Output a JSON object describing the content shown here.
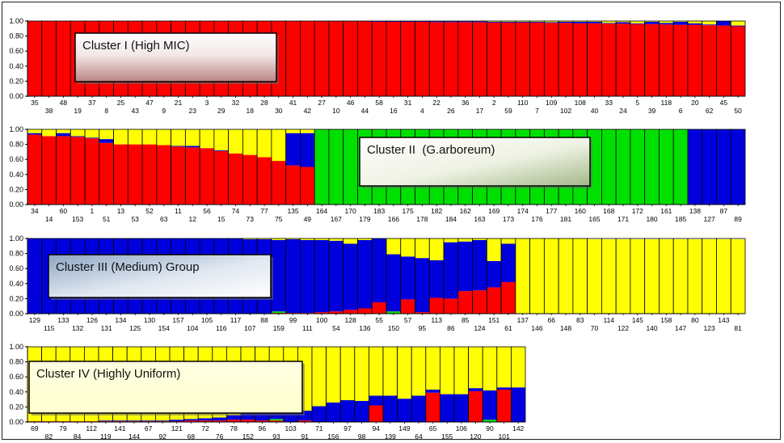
{
  "colors": {
    "red": "#ff0000",
    "green": "#00e000",
    "blue": "#0000dd",
    "yellow": "#ffff00"
  },
  "y_ticks": [
    "0.00",
    "0.20",
    "0.40",
    "0.60",
    "0.80",
    "1.00"
  ],
  "chart_data": [
    {
      "type": "bar",
      "stacked": true,
      "label": "Cluster I (High MIC)",
      "categories": [
        "35",
        "38",
        "48",
        "19",
        "37",
        "8",
        "25",
        "43",
        "47",
        "9",
        "21",
        "23",
        "3",
        "29",
        "32",
        "18",
        "28",
        "30",
        "41",
        "42",
        "27",
        "10",
        "46",
        "44",
        "58",
        "16",
        "31",
        "4",
        "22",
        "26",
        "36",
        "17",
        "2",
        "59",
        "110",
        "7",
        "109",
        "102",
        "108",
        "40",
        "33",
        "24",
        "5",
        "39",
        "118",
        "6",
        "20",
        "62",
        "45",
        "50"
      ],
      "series": [
        {
          "color": "red",
          "values": [
            1,
            1,
            1,
            1,
            1,
            1,
            1,
            1,
            1,
            1,
            1,
            1,
            1,
            1,
            1,
            1,
            1,
            1,
            1,
            1,
            0.995,
            0.995,
            0.995,
            0.995,
            0.99,
            0.99,
            0.99,
            0.99,
            0.985,
            0.985,
            0.985,
            0.985,
            0.98,
            0.98,
            0.98,
            0.98,
            0.975,
            0.975,
            0.97,
            0.97,
            0.965,
            0.965,
            0.96,
            0.96,
            0.955,
            0.95,
            0.95,
            0.945,
            0.94,
            0.93
          ]
        },
        {
          "color": "blue",
          "values": [
            0,
            0,
            0,
            0,
            0,
            0,
            0,
            0,
            0,
            0,
            0,
            0,
            0,
            0,
            0,
            0,
            0,
            0,
            0,
            0,
            0.005,
            0.005,
            0.005,
            0.005,
            0.01,
            0.01,
            0.01,
            0.01,
            0.01,
            0.01,
            0.01,
            0.01,
            0.01,
            0.01,
            0.01,
            0.01,
            0.01,
            0.015,
            0.02,
            0.02,
            0.01,
            0.02,
            0.01,
            0.03,
            0.02,
            0.04,
            0.02,
            0.01,
            0.06,
            0.01
          ]
        },
        {
          "color": "yellow",
          "values": [
            0,
            0,
            0,
            0,
            0,
            0,
            0,
            0,
            0,
            0,
            0,
            0,
            0,
            0,
            0,
            0,
            0,
            0,
            0,
            0,
            0,
            0,
            0,
            0,
            0,
            0,
            0,
            0,
            0.005,
            0.005,
            0.005,
            0.005,
            0.01,
            0.01,
            0.01,
            0.01,
            0.015,
            0.01,
            0.01,
            0.01,
            0.025,
            0.015,
            0.03,
            0.01,
            0.025,
            0.01,
            0.03,
            0.045,
            0,
            0.06
          ]
        }
      ]
    },
    {
      "type": "bar",
      "stacked": true,
      "label": "Cluster II  (G.arboreum)",
      "categories": [
        "34",
        "14",
        "60",
        "153",
        "1",
        "51",
        "13",
        "53",
        "52",
        "63",
        "11",
        "12",
        "56",
        "15",
        "74",
        "73",
        "77",
        "75",
        "135",
        "49",
        "164",
        "167",
        "170",
        "179",
        "183",
        "166",
        "175",
        "178",
        "182",
        "184",
        "162",
        "163",
        "169",
        "173",
        "174",
        "176",
        "177",
        "181",
        "160",
        "165",
        "168",
        "171",
        "172",
        "180",
        "161",
        "185",
        "138",
        "127",
        "87",
        "89"
      ],
      "series": [
        {
          "color": "red",
          "values": [
            0.93,
            0.91,
            0.91,
            0.9,
            0.88,
            0.82,
            0.8,
            0.8,
            0.8,
            0.79,
            0.77,
            0.76,
            0.75,
            0.71,
            0.68,
            0.66,
            0.63,
            0.58,
            0.52,
            0.5,
            0,
            0,
            0,
            0,
            0,
            0,
            0,
            0,
            0,
            0,
            0,
            0,
            0,
            0,
            0,
            0,
            0,
            0,
            0,
            0,
            0,
            0,
            0,
            0,
            0,
            0,
            0,
            0,
            0,
            0
          ]
        },
        {
          "color": "green",
          "values": [
            0,
            0,
            0,
            0,
            0,
            0,
            0,
            0,
            0,
            0,
            0,
            0,
            0,
            0,
            0,
            0,
            0,
            0,
            0,
            0,
            1,
            1,
            1,
            1,
            1,
            1,
            1,
            1,
            1,
            1,
            1,
            1,
            1,
            1,
            1,
            1,
            1,
            1,
            1,
            1,
            1,
            1,
            1,
            1,
            1,
            1,
            0,
            0,
            0,
            0
          ]
        },
        {
          "color": "blue",
          "values": [
            0.02,
            0,
            0.04,
            0.01,
            0.01,
            0.05,
            0,
            0,
            0,
            0,
            0.01,
            0.02,
            0,
            0.01,
            0,
            0,
            0,
            0,
            0.43,
            0.45,
            0,
            0,
            0,
            0,
            0,
            0,
            0,
            0,
            0,
            0,
            0,
            0,
            0,
            0,
            0,
            0,
            0,
            0,
            0,
            0,
            0,
            0,
            0,
            0,
            0,
            0,
            1,
            1,
            1,
            1
          ]
        },
        {
          "color": "yellow",
          "values": [
            0.05,
            0.09,
            0.05,
            0.09,
            0.11,
            0.13,
            0.2,
            0.2,
            0.2,
            0.21,
            0.22,
            0.22,
            0.25,
            0.28,
            0.32,
            0.34,
            0.37,
            0.42,
            0.05,
            0.05,
            0,
            0,
            0,
            0,
            0,
            0,
            0,
            0,
            0,
            0,
            0,
            0,
            0,
            0,
            0,
            0,
            0,
            0,
            0,
            0,
            0,
            0,
            0,
            0,
            0,
            0,
            0,
            0,
            0,
            0
          ]
        }
      ]
    },
    {
      "type": "bar",
      "stacked": true,
      "label": "Cluster III (Medium) Group",
      "categories": [
        "129",
        "115",
        "133",
        "132",
        "126",
        "131",
        "134",
        "125",
        "130",
        "154",
        "157",
        "104",
        "105",
        "116",
        "117",
        "107",
        "88",
        "159",
        "99",
        "111",
        "100",
        "54",
        "128",
        "136",
        "55",
        "150",
        "57",
        "95",
        "113",
        "86",
        "85",
        "124",
        "151",
        "61",
        "137",
        "146",
        "66",
        "148",
        "83",
        "70",
        "114",
        "122",
        "145",
        "140",
        "158",
        "147",
        "80",
        "123",
        "143",
        "81"
      ],
      "series": [
        {
          "color": "red",
          "values": [
            0,
            0,
            0,
            0,
            0,
            0,
            0,
            0,
            0,
            0,
            0,
            0,
            0,
            0,
            0,
            0,
            0,
            0.01,
            0.01,
            0.01,
            0.02,
            0.03,
            0.05,
            0.07,
            0.15,
            0,
            0.19,
            0.02,
            0.21,
            0.2,
            0.3,
            0.31,
            0.35,
            0.42,
            0,
            0,
            0,
            0,
            0,
            0,
            0,
            0,
            0,
            0,
            0,
            0,
            0,
            0,
            0,
            0
          ]
        },
        {
          "color": "green",
          "values": [
            0,
            0,
            0,
            0,
            0,
            0,
            0,
            0,
            0,
            0,
            0,
            0,
            0,
            0,
            0,
            0,
            0,
            0.02,
            0,
            0,
            0,
            0,
            0,
            0,
            0,
            0.03,
            0,
            0,
            0,
            0,
            0,
            0,
            0,
            0,
            0,
            0,
            0,
            0,
            0,
            0,
            0,
            0,
            0,
            0,
            0,
            0,
            0,
            0,
            0,
            0
          ]
        },
        {
          "color": "blue",
          "values": [
            1,
            1,
            1,
            1,
            1,
            1,
            1,
            1,
            1,
            1,
            1,
            1,
            1,
            1,
            1,
            0.99,
            0.99,
            0.95,
            0.98,
            0.97,
            0.96,
            0.94,
            0.88,
            0.91,
            0.85,
            0.76,
            0.57,
            0.72,
            0.5,
            0.75,
            0.66,
            0.67,
            0.35,
            0.51,
            0,
            0,
            0,
            0,
            0,
            0,
            0,
            0,
            0,
            0,
            0,
            0,
            0,
            0,
            0,
            0
          ]
        },
        {
          "color": "yellow",
          "values": [
            0,
            0,
            0,
            0,
            0,
            0,
            0,
            0,
            0,
            0,
            0,
            0,
            0,
            0,
            0,
            0.01,
            0.01,
            0.02,
            0.01,
            0.02,
            0.02,
            0.03,
            0.07,
            0.02,
            0,
            0.21,
            0.24,
            0.26,
            0.29,
            0.05,
            0.04,
            0.02,
            0.3,
            0.07,
            1,
            1,
            1,
            1,
            1,
            0.99,
            0.99,
            0.99,
            0.99,
            0.99,
            0.99,
            0.99,
            0.99,
            0.99,
            0.99,
            0.99
          ]
        }
      ]
    },
    {
      "type": "bar",
      "stacked": true,
      "label": "Cluster IV (Highly Uniform)",
      "categories": [
        "69",
        "82",
        "79",
        "84",
        "112",
        "119",
        "141",
        "144",
        "67",
        "92",
        "121",
        "68",
        "72",
        "76",
        "78",
        "152",
        "96",
        "93",
        "103",
        "91",
        "71",
        "156",
        "97",
        "98",
        "94",
        "139",
        "149",
        "64",
        "65",
        "155",
        "106",
        "120",
        "90",
        "101",
        "142"
      ],
      "series": [
        {
          "color": "red",
          "values": [
            0.01,
            0.01,
            0.01,
            0.01,
            0.01,
            0.01,
            0.01,
            0.01,
            0.01,
            0.01,
            0.01,
            0.02,
            0.02,
            0.02,
            0.03,
            0.03,
            0.02,
            0.02,
            0,
            0.02,
            0,
            0,
            0,
            0,
            0.22,
            0,
            0,
            0,
            0.39,
            0,
            0,
            0.41,
            0,
            0.43,
            0
          ]
        },
        {
          "color": "green",
          "values": [
            0,
            0,
            0,
            0,
            0,
            0,
            0,
            0,
            0,
            0,
            0,
            0,
            0,
            0,
            0,
            0,
            0,
            0.02,
            0,
            0,
            0,
            0,
            0,
            0,
            0,
            0,
            0,
            0,
            0,
            0,
            0,
            0,
            0.03,
            0,
            0
          ]
        },
        {
          "color": "blue",
          "values": [
            0,
            0,
            0,
            0,
            0,
            0.01,
            0.01,
            0.01,
            0.01,
            0.01,
            0.02,
            0.02,
            0.03,
            0.04,
            0.06,
            0.09,
            0.12,
            0.09,
            0.12,
            0.13,
            0.21,
            0.26,
            0.29,
            0.28,
            0.13,
            0.35,
            0.31,
            0.35,
            0.04,
            0.37,
            0.37,
            0.04,
            0.39,
            0.03,
            0.46
          ]
        },
        {
          "color": "yellow",
          "values": [
            0.99,
            0.99,
            0.99,
            0.99,
            0.99,
            0.98,
            0.98,
            0.98,
            0.98,
            0.98,
            0.97,
            0.96,
            0.95,
            0.94,
            0.91,
            0.88,
            0.86,
            0.87,
            0.88,
            0.85,
            0.79,
            0.74,
            0.71,
            0.72,
            0.65,
            0.65,
            0.69,
            0.65,
            0.57,
            0.63,
            0.63,
            0.55,
            0.58,
            0.54,
            0.54
          ]
        }
      ]
    }
  ]
}
